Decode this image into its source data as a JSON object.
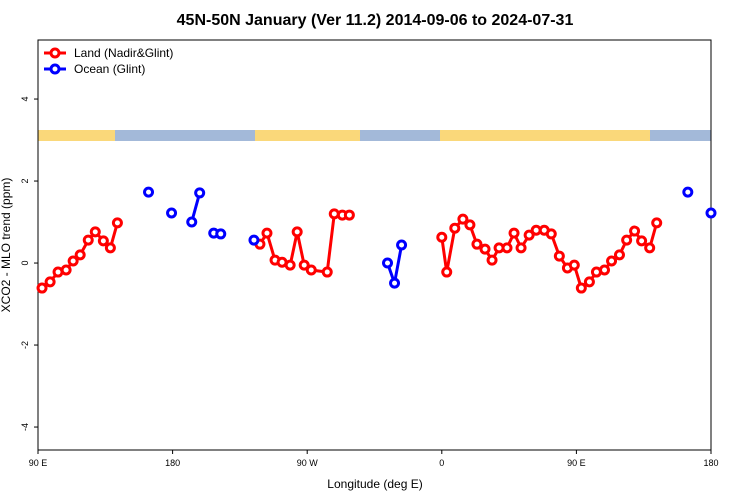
{
  "chart_data": {
    "type": "line",
    "title": "45N-50N January (Ver 11.2)   2014-09-06 to 2024-07-31",
    "x_label": "Longitude (deg E)",
    "y_label": "XCO2 - MLO trend (ppm)",
    "xlim": [
      90,
      540
    ],
    "ylim": [
      -4.56,
      5.44
    ],
    "xticks": [
      {
        "value": 90,
        "label": "90 E"
      },
      {
        "value": 180,
        "label": "180"
      },
      {
        "value": 270,
        "label": "90 W"
      },
      {
        "value": 360,
        "label": "0"
      },
      {
        "value": 450,
        "label": "90 E"
      },
      {
        "value": 540,
        "label": "180"
      }
    ],
    "yticks": [
      -4,
      -2,
      0,
      2,
      4
    ],
    "legend": "top-left",
    "series": [
      {
        "name": "Land (Nadir&Glint)",
        "color": "#ff0000",
        "x": [
          92.7,
          98.1,
          103.4,
          108.8,
          113.5,
          118.2,
          123.6,
          128.3,
          133.7,
          138.4,
          143.1,
          null,
          238.4,
          243.1,
          248.5,
          253.2,
          258.6,
          263.3,
          268.0,
          272.7,
          283.4,
          288.1,
          293.5,
          298.2,
          null,
          360.0,
          363.3,
          368.7,
          374.1,
          378.8,
          383.5,
          388.9,
          393.6,
          398.3,
          403.6,
          408.3,
          413.0,
          418.4,
          423.1,
          428.5,
          433.2,
          438.6,
          444.0,
          448.6,
          453.3,
          458.7,
          463.4,
          468.8,
          473.5,
          478.8,
          483.6,
          488.9,
          493.6,
          499.0,
          503.7
        ],
        "values": [
          -0.61,
          -0.46,
          -0.22,
          -0.17,
          0.05,
          0.2,
          0.56,
          0.76,
          0.54,
          0.37,
          0.98,
          null,
          0.46,
          0.73,
          0.07,
          0.02,
          -0.05,
          0.76,
          -0.05,
          -0.17,
          -0.22,
          1.2,
          1.17,
          1.17,
          null,
          0.63,
          -0.22,
          0.85,
          1.07,
          0.93,
          0.46,
          0.34,
          0.07,
          0.37,
          0.37,
          0.73,
          0.37,
          0.68,
          0.8,
          0.8,
          0.71,
          0.17,
          -0.12,
          -0.05,
          -0.61,
          -0.46,
          -0.22,
          -0.17,
          0.05,
          0.2,
          0.56,
          0.78,
          0.54,
          0.37,
          0.98
        ]
      },
      {
        "name": "Ocean (Glint)",
        "color": "#0000ff",
        "x": [
          163.9,
          null,
          179.3,
          null,
          192.8,
          198.1,
          null,
          207.5,
          212.2,
          null,
          234.4,
          null,
          323.7,
          328.4,
          333.1,
          null,
          524.5,
          null,
          540.0
        ],
        "values": [
          1.73,
          null,
          1.22,
          null,
          1.0,
          1.71,
          null,
          0.73,
          0.71,
          null,
          0.56,
          null,
          0.0,
          -0.49,
          0.44,
          null,
          1.73,
          null,
          1.22
        ]
      }
    ]
  }
}
